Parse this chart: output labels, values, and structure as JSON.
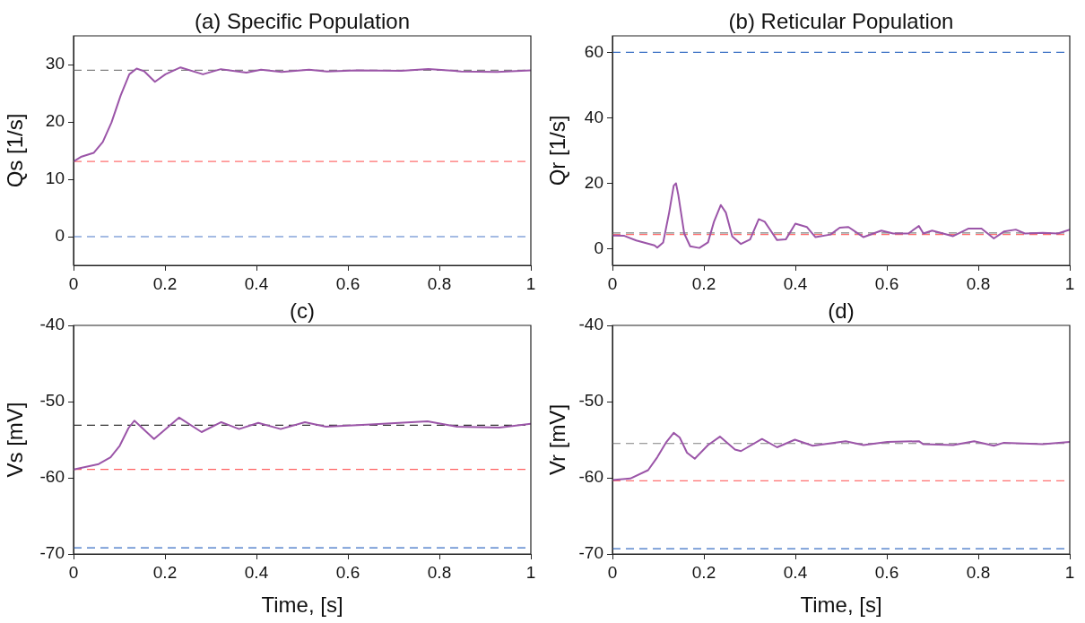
{
  "chart_data": [
    {
      "type": "line",
      "title": "(a) Specific Population",
      "ylabel": "Qs [1/s]",
      "xlim": [
        0,
        1
      ],
      "xticks": [
        0,
        0.2,
        0.4,
        0.6,
        0.8,
        1
      ],
      "ylim": [
        -5,
        35
      ],
      "yticks": [
        0,
        10,
        20,
        30
      ],
      "grid": false,
      "line_style": "solid",
      "series": [
        {
          "color": "#9b55a8",
          "x": [
            0,
            0.016,
            0.044,
            0.064,
            0.083,
            0.103,
            0.122,
            0.138,
            0.155,
            0.178,
            0.201,
            0.234,
            0.283,
            0.322,
            0.378,
            0.41,
            0.455,
            0.515,
            0.554,
            0.619,
            0.717,
            0.776,
            0.848,
            0.926,
            1
          ],
          "values": [
            13.1,
            13.9,
            14.6,
            16.5,
            19.9,
            24.6,
            28.3,
            29.3,
            28.8,
            27.0,
            28.3,
            29.5,
            28.3,
            29.2,
            28.6,
            29.1,
            28.7,
            29.1,
            28.8,
            29.0,
            28.9,
            29.2,
            28.8,
            28.7,
            29.0
          ]
        }
      ],
      "ref_lines": [
        {
          "axis": "y",
          "value": 29,
          "color": "#808080",
          "line_style": "dashed"
        },
        {
          "axis": "y",
          "value": 13.1,
          "color": "#ff7070",
          "line_style": "dashed"
        },
        {
          "axis": "y",
          "value": 0,
          "color": "#4a78c8",
          "line_style": "dashed"
        }
      ]
    },
    {
      "type": "line",
      "title": "(b) Reticular Population",
      "ylabel": "Qr [1/s]",
      "xlim": [
        0,
        1
      ],
      "xticks": [
        0,
        0.2,
        0.4,
        0.6,
        0.8,
        1
      ],
      "ylim": [
        -5,
        65
      ],
      "yticks": [
        0,
        20,
        40,
        60
      ],
      "grid": false,
      "line_style": "solid",
      "series": [
        {
          "color": "#9b55a8",
          "x": [
            0,
            0.026,
            0.052,
            0.092,
            0.098,
            0.111,
            0.124,
            0.134,
            0.139,
            0.144,
            0.157,
            0.17,
            0.19,
            0.209,
            0.222,
            0.237,
            0.248,
            0.262,
            0.281,
            0.301,
            0.32,
            0.333,
            0.36,
            0.379,
            0.4,
            0.425,
            0.444,
            0.477,
            0.497,
            0.516,
            0.549,
            0.588,
            0.614,
            0.647,
            0.67,
            0.68,
            0.699,
            0.745,
            0.778,
            0.807,
            0.834,
            0.856,
            0.882,
            0.902,
            0.941,
            0.974,
            1
          ],
          "values": [
            4.1,
            4.0,
            2.6,
            1.1,
            0.4,
            2.0,
            11.1,
            19.3,
            20.0,
            16.5,
            4.7,
            0.8,
            0.3,
            2.0,
            8.3,
            13.4,
            11.1,
            3.8,
            1.5,
            2.9,
            9.1,
            8.3,
            2.7,
            2.9,
            7.7,
            6.7,
            3.6,
            4.4,
            6.5,
            6.7,
            3.6,
            5.6,
            4.7,
            4.7,
            7.0,
            4.7,
            5.6,
            3.9,
            6.2,
            6.2,
            3.2,
            5.3,
            5.9,
            4.7,
            4.9,
            4.7,
            5.9
          ]
        }
      ],
      "ref_lines": [
        {
          "axis": "y",
          "value": 60,
          "color": "#3a6fc4",
          "line_style": "dashed"
        },
        {
          "axis": "y",
          "value": 4.9,
          "color": "#808080",
          "line_style": "dashed"
        },
        {
          "axis": "y",
          "value": 4.4,
          "color": "#ff7070",
          "line_style": "dashed"
        }
      ]
    },
    {
      "type": "line",
      "title": "(c)",
      "xlabel": "Time, [s]",
      "ylabel": "Vs [mV]",
      "xlim": [
        0,
        1
      ],
      "xticks": [
        0,
        0.2,
        0.4,
        0.6,
        0.8,
        1
      ],
      "ylim": [
        -70,
        -40
      ],
      "yticks": [
        -70,
        -60,
        -50,
        -40
      ],
      "grid": false,
      "line_style": "solid",
      "series": [
        {
          "color": "#9b55a8",
          "x": [
            0,
            0.055,
            0.081,
            0.101,
            0.12,
            0.133,
            0.176,
            0.231,
            0.28,
            0.323,
            0.362,
            0.404,
            0.453,
            0.506,
            0.552,
            0.65,
            0.774,
            0.839,
            0.931,
            1
          ],
          "values": [
            -58.9,
            -58.2,
            -57.3,
            -55.8,
            -53.5,
            -52.5,
            -54.9,
            -52.1,
            -54.0,
            -52.7,
            -53.6,
            -52.8,
            -53.6,
            -52.7,
            -53.3,
            -53.0,
            -52.6,
            -53.3,
            -53.4,
            -52.9
          ]
        }
      ],
      "ref_lines": [
        {
          "axis": "y",
          "value": -53.1,
          "color": "#333333",
          "line_style": "dashed"
        },
        {
          "axis": "y",
          "value": -58.9,
          "color": "#ff6060",
          "line_style": "dashed"
        },
        {
          "axis": "y",
          "value": -69.2,
          "color": "#3a6fc4",
          "line_style": "dashed"
        }
      ]
    },
    {
      "type": "line",
      "title": "(d)",
      "xlabel": "Time, [s]",
      "ylabel": "Vr [mV]",
      "xlim": [
        0,
        1
      ],
      "xticks": [
        0,
        0.2,
        0.4,
        0.6,
        0.8,
        1
      ],
      "ylim": [
        -70,
        -40
      ],
      "yticks": [
        -70,
        -60,
        -50,
        -40
      ],
      "grid": false,
      "line_style": "solid",
      "series": [
        {
          "color": "#9b55a8",
          "x": [
            0,
            0.039,
            0.078,
            0.098,
            0.118,
            0.134,
            0.147,
            0.163,
            0.18,
            0.209,
            0.235,
            0.268,
            0.281,
            0.327,
            0.36,
            0.399,
            0.438,
            0.51,
            0.549,
            0.601,
            0.67,
            0.68,
            0.745,
            0.791,
            0.834,
            0.856,
            0.941,
            1
          ],
          "values": [
            -60.3,
            -60.1,
            -59.0,
            -57.3,
            -55.3,
            -54.1,
            -54.7,
            -56.7,
            -57.5,
            -55.7,
            -54.6,
            -56.3,
            -56.5,
            -54.9,
            -56.0,
            -55.0,
            -55.8,
            -55.2,
            -55.7,
            -55.3,
            -55.2,
            -55.6,
            -55.7,
            -55.2,
            -55.8,
            -55.4,
            -55.6,
            -55.3
          ]
        }
      ],
      "ref_lines": [
        {
          "axis": "y",
          "value": -55.5,
          "color": "#808080",
          "line_style": "dashed"
        },
        {
          "axis": "y",
          "value": -60.4,
          "color": "#ff7070",
          "line_style": "dashed"
        },
        {
          "axis": "y",
          "value": -69.3,
          "color": "#3a6fc4",
          "line_style": "dashed"
        }
      ]
    }
  ]
}
